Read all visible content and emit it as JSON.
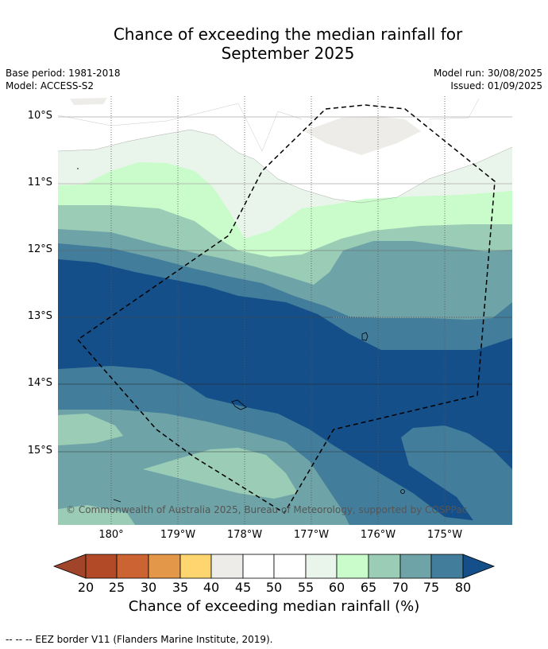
{
  "title": {
    "line1": "Chance of exceeding the median rainfall for",
    "line2": "September 2025"
  },
  "meta": {
    "base_period": "Base period: 1981-2018",
    "model": "Model: ACCESS-S2",
    "model_run": "Model run: 30/08/2025",
    "issued": "Issued: 01/09/2025"
  },
  "map": {
    "latitude_labels": [
      "10°S",
      "11°S",
      "12°S",
      "13°S",
      "14°S",
      "15°S"
    ],
    "longitude_labels": [
      "180°",
      "179°W",
      "178°W",
      "177°W",
      "176°W",
      "175°W"
    ],
    "copyright": "© Commonwealth of Australia 2025, Bureau of Meteorology, supported by COSPPac",
    "boundary": "EEZ border (dashed)"
  },
  "colorbar": {
    "ticks": [
      "20",
      "25",
      "30",
      "35",
      "40",
      "45",
      "50",
      "55",
      "60",
      "65",
      "70",
      "75",
      "80"
    ],
    "colors": [
      "#a0442a",
      "#b24a28",
      "#cb6333",
      "#e29749",
      "#fed56f",
      "#eeece8",
      "#ffffff",
      "#ffffff",
      "#e9f5ea",
      "#c9fbcb",
      "#9bcdb6",
      "#6ea4a7",
      "#427d9b",
      "#144f89"
    ],
    "title": "Chance of exceeding median rainfall (%)"
  },
  "footnote": "--  --  -- EEZ border V11 (Flanders Marine Institute, 2019)."
}
